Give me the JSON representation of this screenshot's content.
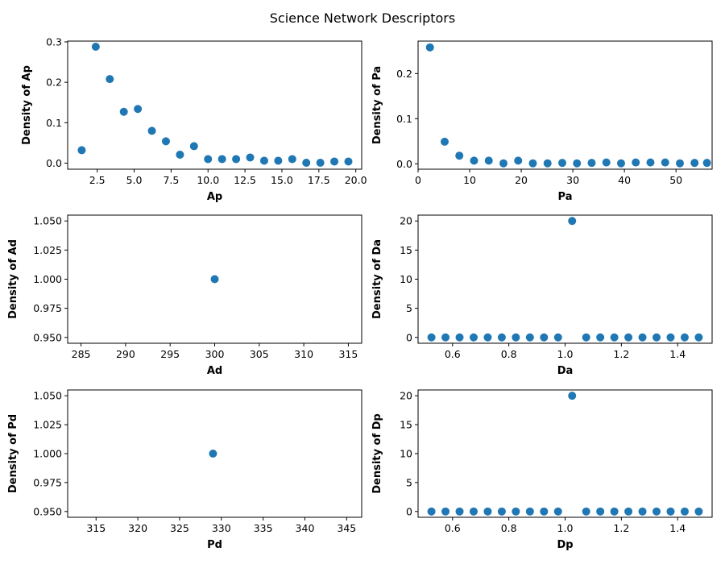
{
  "figure": {
    "title": "Science Network Descriptors"
  },
  "colors": {
    "series": "#1f77b4",
    "axes": "#000000",
    "background": "#ffffff"
  },
  "chart_data": [
    {
      "id": "ap",
      "type": "scatter",
      "xlabel": "Ap",
      "ylabel": "Density of Ap",
      "xlim": [
        0.5,
        20.4
      ],
      "ylim": [
        -0.015,
        0.302
      ],
      "xticks": [
        2.5,
        5.0,
        7.5,
        10.0,
        12.5,
        15.0,
        17.5,
        20.0
      ],
      "xtick_labels": [
        "2.5",
        "5.0",
        "7.5",
        "10.0",
        "12.5",
        "15.0",
        "17.5",
        "20.0"
      ],
      "yticks": [
        0.0,
        0.1,
        0.2,
        0.3
      ],
      "ytick_labels": [
        "0.0",
        "0.1",
        "0.2",
        "0.3"
      ],
      "x": [
        1.45,
        2.4,
        3.35,
        4.3,
        5.25,
        6.2,
        7.15,
        8.1,
        9.05,
        10.0,
        10.95,
        11.9,
        12.85,
        13.8,
        14.75,
        15.7,
        16.65,
        17.6,
        18.55,
        19.5
      ],
      "y": [
        0.032,
        0.288,
        0.208,
        0.127,
        0.134,
        0.08,
        0.054,
        0.021,
        0.042,
        0.01,
        0.01,
        0.01,
        0.014,
        0.006,
        0.006,
        0.01,
        0.001,
        0.001,
        0.004,
        0.004
      ]
    },
    {
      "id": "pa",
      "type": "scatter",
      "xlabel": "Pa",
      "ylabel": "Density of Pa",
      "xlim": [
        0,
        57
      ],
      "ylim": [
        -0.012,
        0.272
      ],
      "xticks": [
        0,
        10,
        20,
        30,
        40,
        50
      ],
      "xtick_labels": [
        "0",
        "10",
        "20",
        "30",
        "40",
        "50"
      ],
      "yticks": [
        0.0,
        0.1,
        0.2
      ],
      "ytick_labels": [
        "0.0",
        "0.1",
        "0.2"
      ],
      "x": [
        2.3,
        5.15,
        8.0,
        10.85,
        13.7,
        16.55,
        19.4,
        22.25,
        25.1,
        27.95,
        30.8,
        33.65,
        36.5,
        39.35,
        42.2,
        45.05,
        47.9,
        50.75,
        53.6,
        56.0
      ],
      "y": [
        0.258,
        0.049,
        0.018,
        0.007,
        0.007,
        0.001,
        0.007,
        0.001,
        0.001,
        0.002,
        0.001,
        0.002,
        0.003,
        0.001,
        0.003,
        0.003,
        0.003,
        0.001,
        0.002,
        0.002
      ]
    },
    {
      "id": "ad",
      "type": "scatter",
      "xlabel": "Ad",
      "ylabel": "Density of Ad",
      "xlim": [
        283.5,
        316.5
      ],
      "ylim": [
        0.945,
        1.055
      ],
      "xticks": [
        285,
        290,
        295,
        300,
        305,
        310,
        315
      ],
      "xtick_labels": [
        "285",
        "290",
        "295",
        "300",
        "305",
        "310",
        "315"
      ],
      "yticks": [
        0.95,
        0.975,
        1.0,
        1.025,
        1.05
      ],
      "ytick_labels": [
        "0.950",
        "0.975",
        "1.000",
        "1.025",
        "1.050"
      ],
      "x": [
        300
      ],
      "y": [
        1.0
      ]
    },
    {
      "id": "da",
      "type": "scatter",
      "xlabel": "Da",
      "ylabel": "Density of Da",
      "xlim": [
        0.4775,
        1.5225
      ],
      "ylim": [
        -1.0,
        21.0
      ],
      "xticks": [
        0.6,
        0.8,
        1.0,
        1.2,
        1.4
      ],
      "xtick_labels": [
        "0.6",
        "0.8",
        "1.0",
        "1.2",
        "1.4"
      ],
      "yticks": [
        0,
        5,
        10,
        15,
        20
      ],
      "ytick_labels": [
        "0",
        "5",
        "10",
        "15",
        "20"
      ],
      "x": [
        0.525,
        0.575,
        0.625,
        0.675,
        0.725,
        0.775,
        0.825,
        0.875,
        0.925,
        0.975,
        1.025,
        1.075,
        1.125,
        1.175,
        1.225,
        1.275,
        1.325,
        1.375,
        1.425,
        1.475
      ],
      "y": [
        0,
        0,
        0,
        0,
        0,
        0,
        0,
        0,
        0,
        0,
        20,
        0,
        0,
        0,
        0,
        0,
        0,
        0,
        0,
        0
      ]
    },
    {
      "id": "pd",
      "type": "scatter",
      "xlabel": "Pd",
      "ylabel": "Density of Pd",
      "xlim": [
        311.6,
        346.8
      ],
      "ylim": [
        0.945,
        1.055
      ],
      "xticks": [
        315,
        320,
        325,
        330,
        335,
        340,
        345
      ],
      "xtick_labels": [
        "315",
        "320",
        "325",
        "330",
        "335",
        "340",
        "345"
      ],
      "yticks": [
        0.95,
        0.975,
        1.0,
        1.025,
        1.05
      ],
      "ytick_labels": [
        "0.950",
        "0.975",
        "1.000",
        "1.025",
        "1.050"
      ],
      "x": [
        329
      ],
      "y": [
        1.0
      ]
    },
    {
      "id": "dp",
      "type": "scatter",
      "xlabel": "Dp",
      "ylabel": "Density of Dp",
      "xlim": [
        0.4775,
        1.5225
      ],
      "ylim": [
        -1.0,
        21.0
      ],
      "xticks": [
        0.6,
        0.8,
        1.0,
        1.2,
        1.4
      ],
      "xtick_labels": [
        "0.6",
        "0.8",
        "1.0",
        "1.2",
        "1.4"
      ],
      "yticks": [
        0,
        5,
        10,
        15,
        20
      ],
      "ytick_labels": [
        "0",
        "5",
        "10",
        "15",
        "20"
      ],
      "x": [
        0.525,
        0.575,
        0.625,
        0.675,
        0.725,
        0.775,
        0.825,
        0.875,
        0.925,
        0.975,
        1.025,
        1.075,
        1.125,
        1.175,
        1.225,
        1.275,
        1.325,
        1.375,
        1.425,
        1.475
      ],
      "y": [
        0,
        0,
        0,
        0,
        0,
        0,
        0,
        0,
        0,
        0,
        20,
        0,
        0,
        0,
        0,
        0,
        0,
        0,
        0,
        0
      ]
    }
  ]
}
